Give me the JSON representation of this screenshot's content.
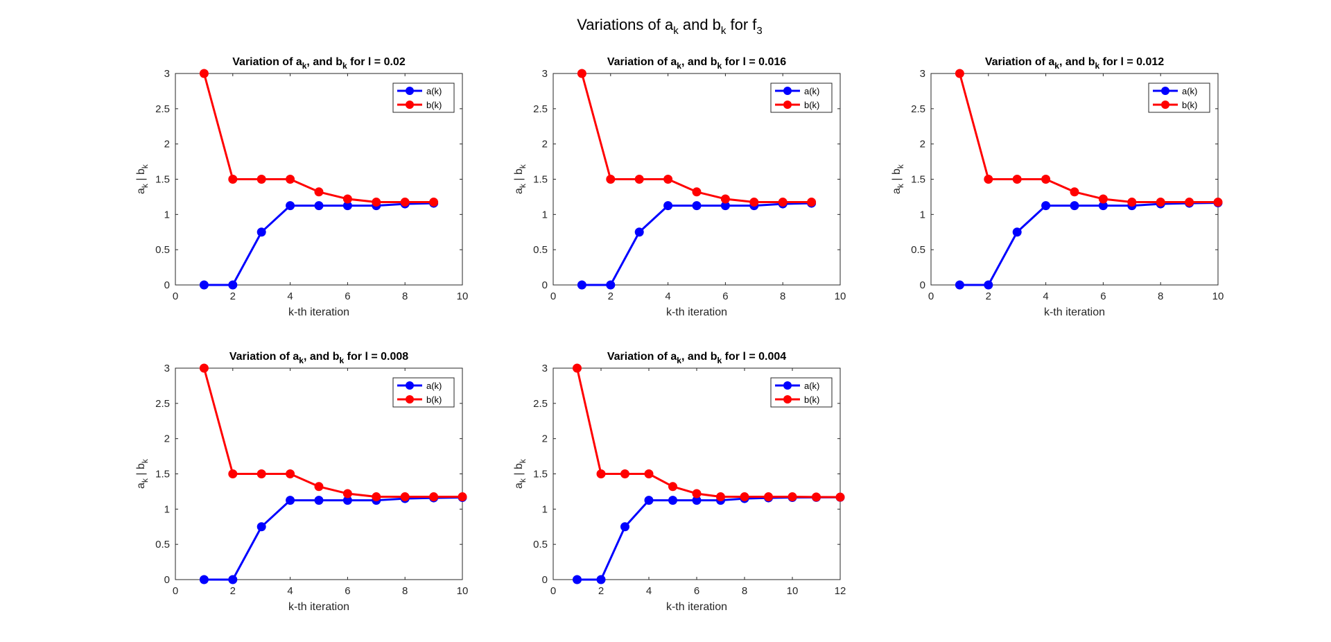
{
  "figure": {
    "title_parts": {
      "text1": "Variations of a",
      "sub1": "k",
      "text2": " and b",
      "sub2": "k",
      "text3": " for f",
      "sub3": "3"
    },
    "colors": {
      "a": "#0000ff",
      "b": "#ff0000",
      "axis": "#262626"
    }
  },
  "chart_data": [
    {
      "type": "line",
      "title_parts": {
        "t1": "Variation of a",
        "s1": "k",
        "t2": ", and b",
        "s2": "k",
        "t3": " for l = 0.02"
      },
      "xlabel": "k-th iteration",
      "ylabel_parts": {
        "t1": "a",
        "s1": "k",
        "t2": " | b",
        "s2": "k"
      },
      "xlim": [
        0,
        10
      ],
      "ylim": [
        0,
        3
      ],
      "xticks": [
        0,
        2,
        4,
        6,
        8,
        10
      ],
      "yticks": [
        0,
        0.5,
        1,
        1.5,
        2,
        2.5,
        3
      ],
      "legend": "top-right",
      "series": [
        {
          "name": "a(k)",
          "x": [
            1,
            2,
            3,
            4,
            5,
            6,
            7,
            8,
            9
          ],
          "values": [
            0,
            0,
            0.75,
            1.125,
            1.125,
            1.125,
            1.125,
            1.15,
            1.16
          ]
        },
        {
          "name": "b(k)",
          "x": [
            1,
            2,
            3,
            4,
            5,
            6,
            7,
            8,
            9
          ],
          "values": [
            3,
            1.5,
            1.5,
            1.5,
            1.32,
            1.22,
            1.175,
            1.175,
            1.175
          ]
        }
      ]
    },
    {
      "type": "line",
      "title_parts": {
        "t1": "Variation of a",
        "s1": "k",
        "t2": ", and b",
        "s2": "k",
        "t3": " for l = 0.016"
      },
      "xlabel": "k-th iteration",
      "ylabel_parts": {
        "t1": "a",
        "s1": "k",
        "t2": " | b",
        "s2": "k"
      },
      "xlim": [
        0,
        10
      ],
      "ylim": [
        0,
        3
      ],
      "xticks": [
        0,
        2,
        4,
        6,
        8,
        10
      ],
      "yticks": [
        0,
        0.5,
        1,
        1.5,
        2,
        2.5,
        3
      ],
      "legend": "top-right",
      "series": [
        {
          "name": "a(k)",
          "x": [
            1,
            2,
            3,
            4,
            5,
            6,
            7,
            8,
            9
          ],
          "values": [
            0,
            0,
            0.75,
            1.125,
            1.125,
            1.125,
            1.125,
            1.15,
            1.16
          ]
        },
        {
          "name": "b(k)",
          "x": [
            1,
            2,
            3,
            4,
            5,
            6,
            7,
            8,
            9
          ],
          "values": [
            3,
            1.5,
            1.5,
            1.5,
            1.32,
            1.22,
            1.175,
            1.175,
            1.175
          ]
        }
      ]
    },
    {
      "type": "line",
      "title_parts": {
        "t1": "Variation of a",
        "s1": "k",
        "t2": ", and b",
        "s2": "k",
        "t3": " for l = 0.012"
      },
      "xlabel": "k-th iteration",
      "ylabel_parts": {
        "t1": "a",
        "s1": "k",
        "t2": " | b",
        "s2": "k"
      },
      "xlim": [
        0,
        10
      ],
      "ylim": [
        0,
        3
      ],
      "xticks": [
        0,
        2,
        4,
        6,
        8,
        10
      ],
      "yticks": [
        0,
        0.5,
        1,
        1.5,
        2,
        2.5,
        3
      ],
      "legend": "top-right",
      "series": [
        {
          "name": "a(k)",
          "x": [
            1,
            2,
            3,
            4,
            5,
            6,
            7,
            8,
            9,
            10
          ],
          "values": [
            0,
            0,
            0.75,
            1.125,
            1.125,
            1.125,
            1.125,
            1.15,
            1.16,
            1.165
          ]
        },
        {
          "name": "b(k)",
          "x": [
            1,
            2,
            3,
            4,
            5,
            6,
            7,
            8,
            9,
            10
          ],
          "values": [
            3,
            1.5,
            1.5,
            1.5,
            1.32,
            1.22,
            1.175,
            1.175,
            1.175,
            1.175
          ]
        }
      ]
    },
    {
      "type": "line",
      "title_parts": {
        "t1": "Variation of a",
        "s1": "k",
        "t2": ", and b",
        "s2": "k",
        "t3": " for l = 0.008"
      },
      "xlabel": "k-th iteration",
      "ylabel_parts": {
        "t1": "a",
        "s1": "k",
        "t2": " | b",
        "s2": "k"
      },
      "xlim": [
        0,
        10
      ],
      "ylim": [
        0,
        3
      ],
      "xticks": [
        0,
        2,
        4,
        6,
        8,
        10
      ],
      "yticks": [
        0,
        0.5,
        1,
        1.5,
        2,
        2.5,
        3
      ],
      "legend": "top-right",
      "series": [
        {
          "name": "a(k)",
          "x": [
            1,
            2,
            3,
            4,
            5,
            6,
            7,
            8,
            9,
            10
          ],
          "values": [
            0,
            0,
            0.75,
            1.125,
            1.125,
            1.125,
            1.125,
            1.15,
            1.16,
            1.165
          ]
        },
        {
          "name": "b(k)",
          "x": [
            1,
            2,
            3,
            4,
            5,
            6,
            7,
            8,
            9,
            10
          ],
          "values": [
            3,
            1.5,
            1.5,
            1.5,
            1.32,
            1.22,
            1.175,
            1.175,
            1.175,
            1.175
          ]
        }
      ]
    },
    {
      "type": "line",
      "title_parts": {
        "t1": "Variation of a",
        "s1": "k",
        "t2": ", and b",
        "s2": "k",
        "t3": " for l = 0.004"
      },
      "xlabel": "k-th iteration",
      "ylabel_parts": {
        "t1": "a",
        "s1": "k",
        "t2": " | b",
        "s2": "k"
      },
      "xlim": [
        0,
        12
      ],
      "ylim": [
        0,
        3
      ],
      "xticks": [
        0,
        2,
        4,
        6,
        8,
        10,
        12
      ],
      "yticks": [
        0,
        0.5,
        1,
        1.5,
        2,
        2.5,
        3
      ],
      "legend": "top-right",
      "series": [
        {
          "name": "a(k)",
          "x": [
            1,
            2,
            3,
            4,
            5,
            6,
            7,
            8,
            9,
            10,
            11,
            12
          ],
          "values": [
            0,
            0,
            0.75,
            1.125,
            1.125,
            1.125,
            1.125,
            1.15,
            1.16,
            1.165,
            1.167,
            1.168
          ]
        },
        {
          "name": "b(k)",
          "x": [
            1,
            2,
            3,
            4,
            5,
            6,
            7,
            8,
            9,
            10,
            11,
            12
          ],
          "values": [
            3,
            1.5,
            1.5,
            1.5,
            1.32,
            1.22,
            1.175,
            1.175,
            1.175,
            1.175,
            1.172,
            1.17
          ]
        }
      ]
    }
  ]
}
